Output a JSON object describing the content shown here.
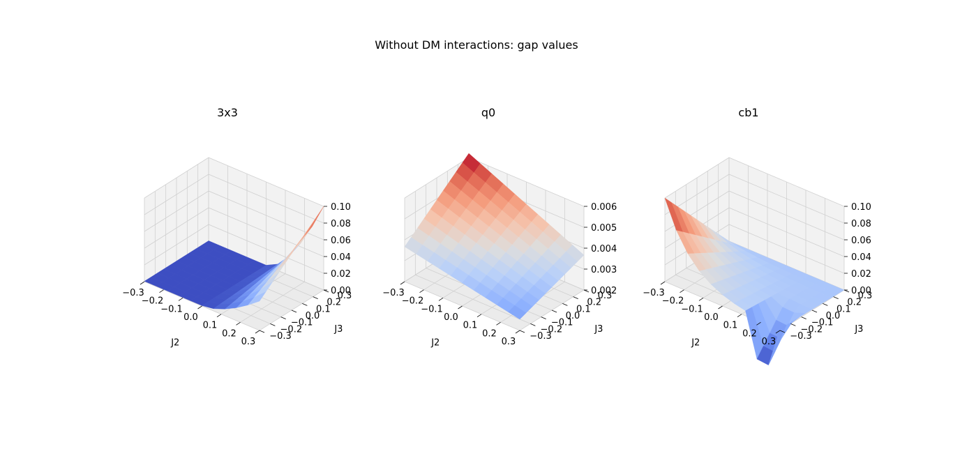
{
  "figure": {
    "suptitle": "Without DM interactions: gap values"
  },
  "chart_data": [
    {
      "type": "surface3d",
      "title": "3x3",
      "xlabel": "J2",
      "ylabel": "J3",
      "xticks": [
        "−0.3",
        "−0.2",
        "−0.1",
        "0.0",
        "0.1",
        "0.2",
        "0.3"
      ],
      "yticks": [
        "−0.3",
        "−0.2",
        "−0.1",
        "0.0",
        "0.1",
        "0.2",
        "0.3"
      ],
      "zticks": [
        "0.00",
        "0.02",
        "0.04",
        "0.06",
        "0.08",
        "0.10"
      ],
      "xlim": [
        -0.3,
        0.3
      ],
      "ylim": [
        -0.3,
        0.3
      ],
      "zlim": [
        0.0,
        0.1
      ],
      "colormap": "coolwarm",
      "description_z": "near 0 for J2 <= 0, rising to 0.10 at J2=0.3, J3=0.3",
      "grid": true
    },
    {
      "type": "surface3d",
      "title": "q0",
      "xlabel": "J2",
      "ylabel": "J3",
      "xticks": [
        "−0.3",
        "−0.2",
        "−0.1",
        "0.0",
        "0.1",
        "0.2",
        "0.3"
      ],
      "yticks": [
        "−0.3",
        "−0.2",
        "−0.1",
        "0.0",
        "0.1",
        "0.2",
        "0.3"
      ],
      "zticks": [
        "0.002",
        "0.003",
        "0.004",
        "0.005",
        "0.006"
      ],
      "xlim": [
        -0.3,
        0.3
      ],
      "ylim": [
        -0.3,
        0.3
      ],
      "zlim": [
        0.002,
        0.006
      ],
      "colormap": "coolwarm",
      "description_z": "smooth dome; max ~0.006 at J2=-0.3, J3=0.3; min ~0.0015 at J2=0.3, J3=-0.3",
      "grid": true
    },
    {
      "type": "surface3d",
      "title": "cb1",
      "xlabel": "J2",
      "ylabel": "J3",
      "xticks": [
        "−0.3",
        "−0.2",
        "−0.1",
        "0.0",
        "0.1",
        "0.2",
        "0.3"
      ],
      "yticks": [
        "−0.3",
        "−0.2",
        "−0.1",
        "0.0",
        "0.1",
        "0.2",
        "0.3"
      ],
      "zticks": [
        "0.00",
        "0.02",
        "0.04",
        "0.06",
        "0.08",
        "0.10"
      ],
      "xlim": [
        -0.3,
        0.3
      ],
      "ylim": [
        -0.3,
        0.3
      ],
      "zlim": [
        0.0,
        0.1
      ],
      "colormap": "coolwarm",
      "description_z": "peak ~0.10 at J2=-0.3, J3=-0.3 edge; ~0 elsewhere with negative dips near J2=0.2",
      "grid": true
    }
  ]
}
